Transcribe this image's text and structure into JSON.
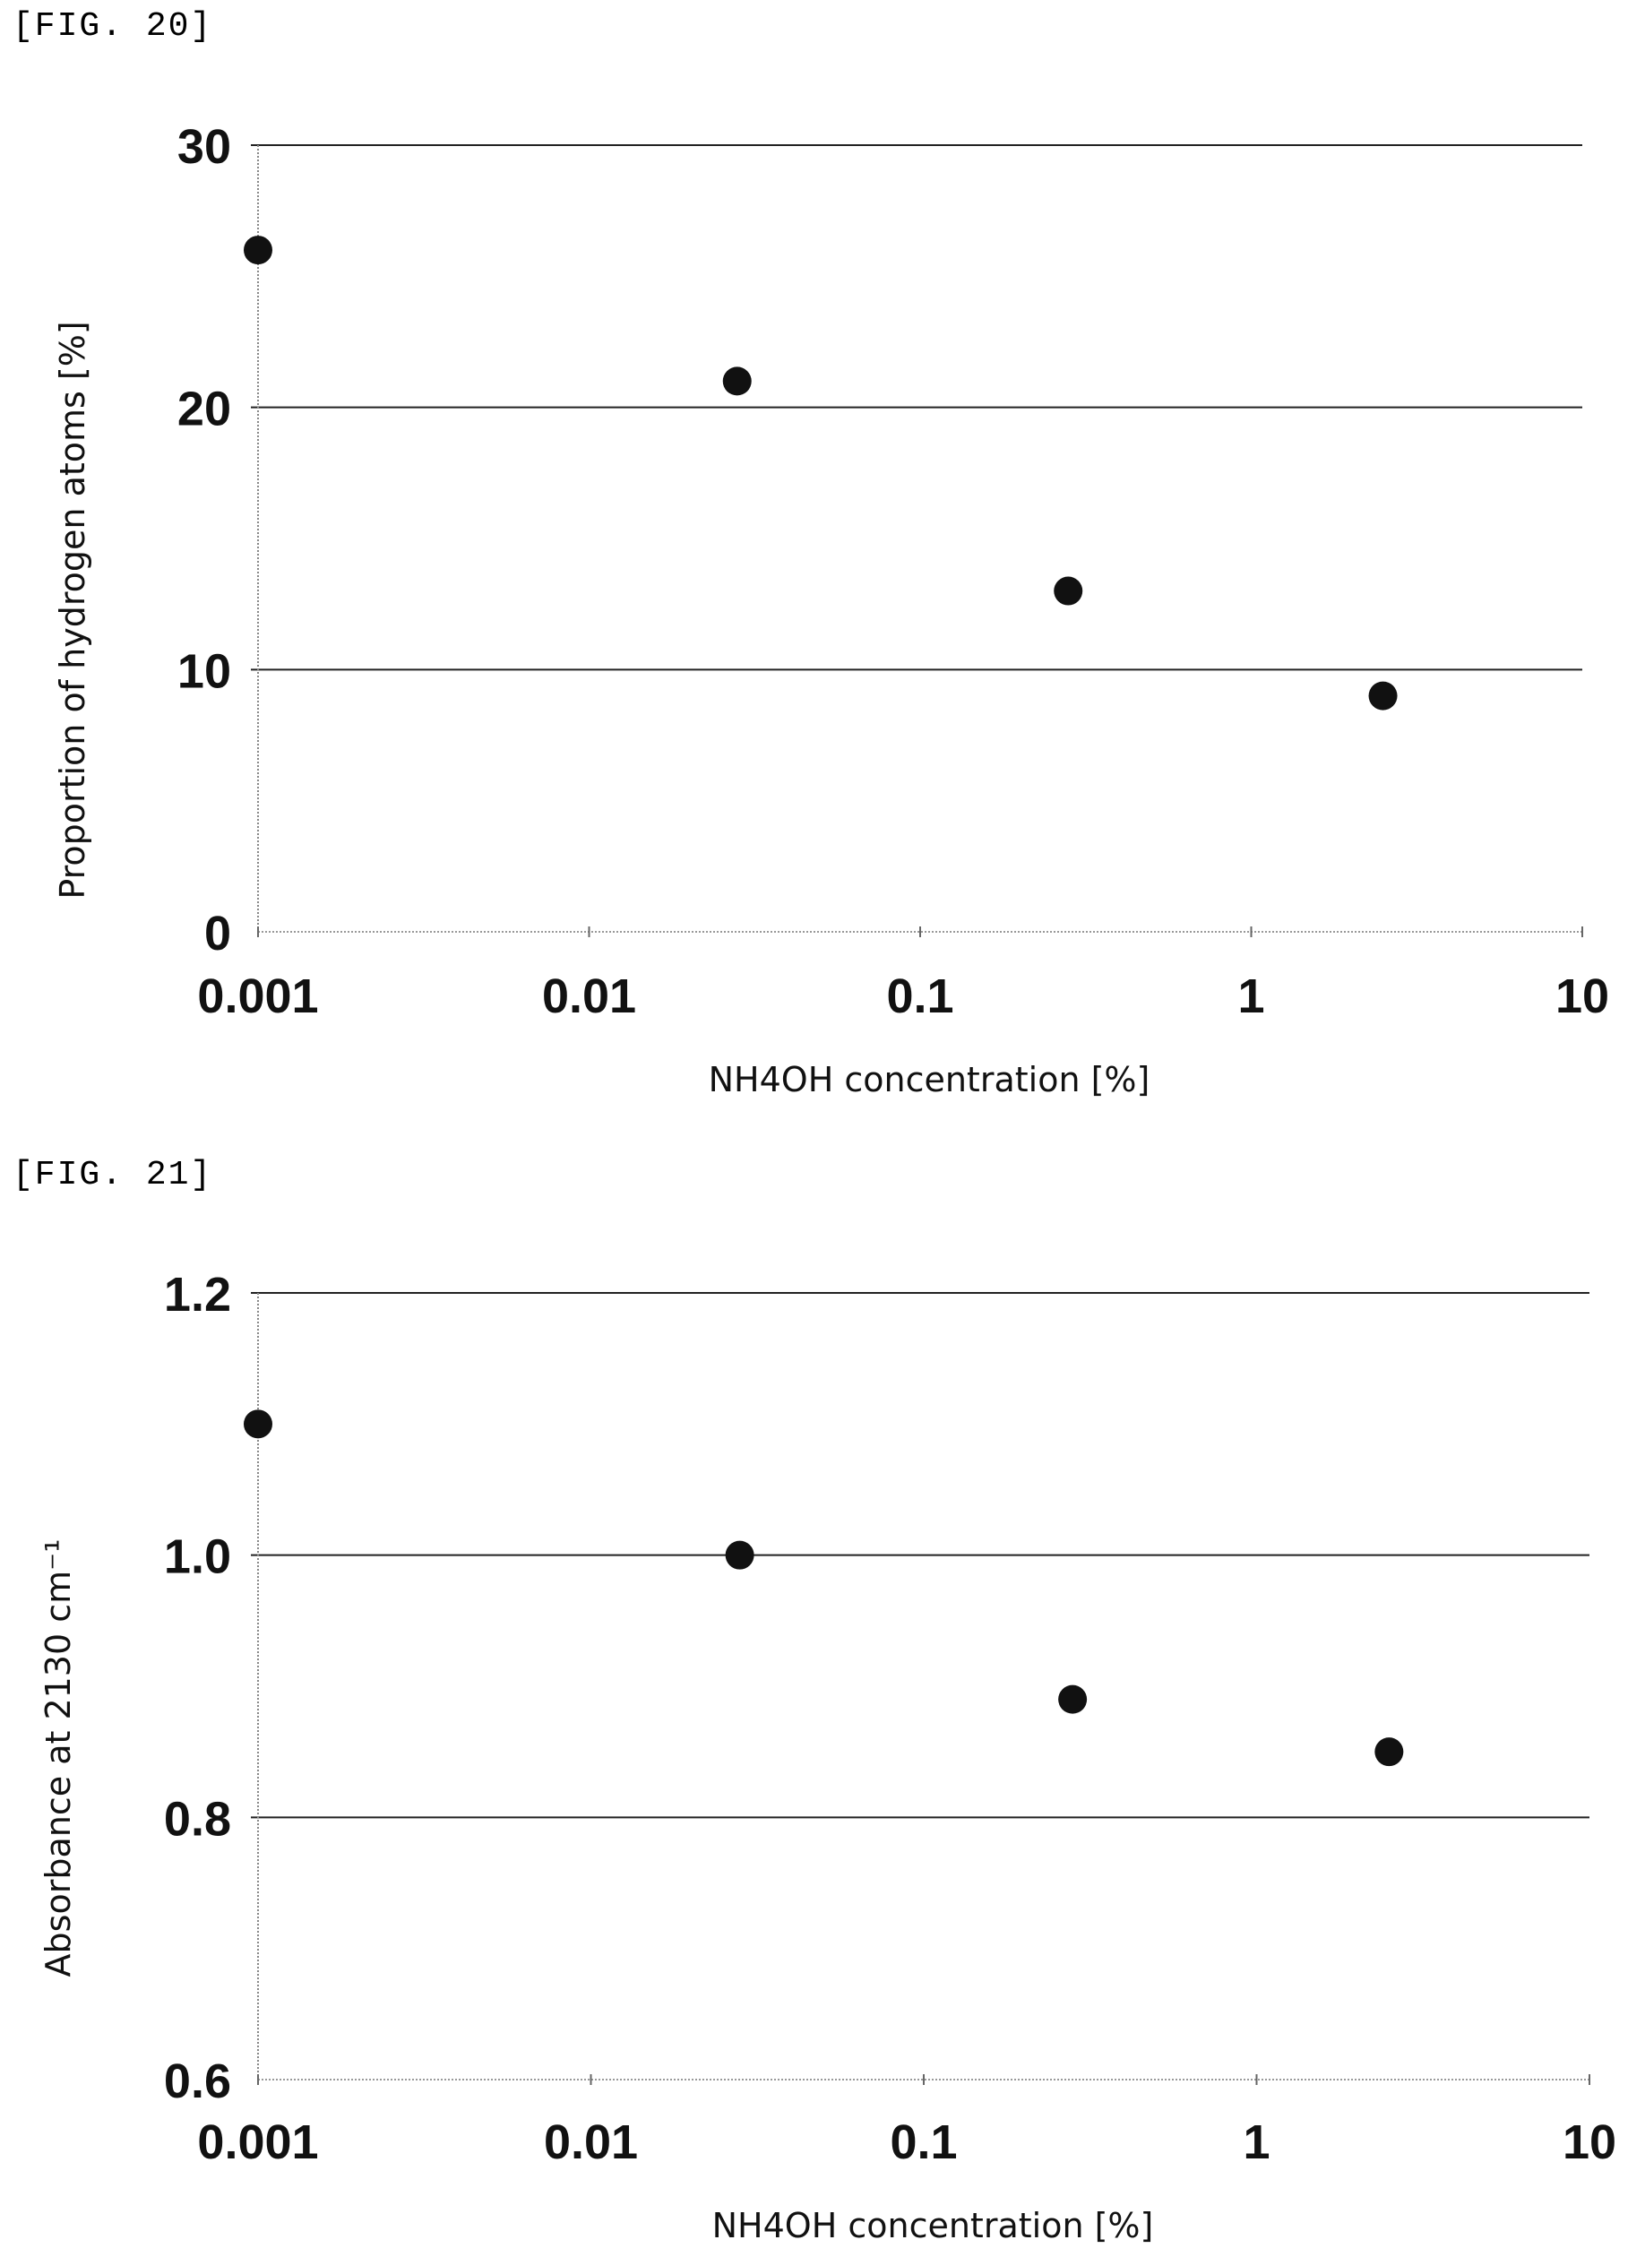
{
  "figures": [
    {
      "label": "[FIG. 20]"
    },
    {
      "label": "[FIG. 21]"
    }
  ],
  "chart_data": [
    {
      "type": "scatter",
      "title": "",
      "xlabel": "NH4OH concentration [%]",
      "ylabel": "Proportion of hydrogen atoms [%]",
      "x_scale": "log",
      "xlim": [
        0.001,
        10
      ],
      "ylim": [
        0,
        30
      ],
      "x_ticks": [
        "0.001",
        "0.01",
        "0.1",
        "1",
        "10"
      ],
      "y_ticks": [
        "0",
        "10",
        "20",
        "30"
      ],
      "grid": "horizontal",
      "series": [
        {
          "x": [
            0.001,
            0.028,
            0.28,
            2.5
          ],
          "y": [
            26,
            21,
            13,
            9
          ]
        }
      ]
    },
    {
      "type": "scatter",
      "title": "",
      "xlabel": "NH4OH concentration [%]",
      "ylabel": "Absorbance at 2130 cm⁻¹",
      "x_scale": "log",
      "xlim": [
        0.001,
        10
      ],
      "ylim": [
        0.6,
        1.2
      ],
      "x_ticks": [
        "0.001",
        "0.01",
        "0.1",
        "1",
        "10"
      ],
      "y_ticks": [
        "0.6",
        "0.8",
        "1.0",
        "1.2"
      ],
      "grid": "horizontal",
      "series": [
        {
          "x": [
            0.001,
            0.028,
            0.28,
            2.5
          ],
          "y": [
            1.1,
            1.0,
            0.89,
            0.85
          ]
        }
      ]
    }
  ]
}
